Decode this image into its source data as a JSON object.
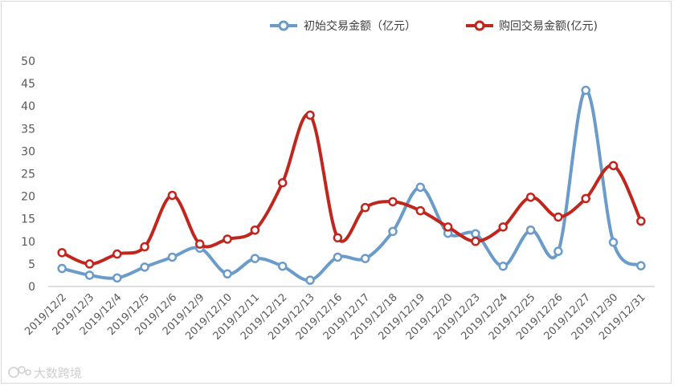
{
  "chart_data": {
    "type": "line",
    "categories": [
      "2019/12/2",
      "2019/12/3",
      "2019/12/4",
      "2019/12/5",
      "2019/12/6",
      "2019/12/9",
      "2019/12/10",
      "2019/12/11",
      "2019/12/12",
      "2019/12/13",
      "2019/12/16",
      "2019/12/17",
      "2019/12/18",
      "2019/12/19",
      "2019/12/20",
      "2019/12/23",
      "2019/12/24",
      "2019/12/25",
      "2019/12/26",
      "2019/12/27",
      "2019/12/30",
      "2019/12/31"
    ],
    "series": [
      {
        "name": "初始交易金额（亿元）",
        "color": "#6b9bc9",
        "values": [
          4,
          2.5,
          1.9,
          4.3,
          6.5,
          8.5,
          2.8,
          6.2,
          4.5,
          1.4,
          6.5,
          6.2,
          12.2,
          22,
          11.8,
          11.7,
          4.5,
          12.5,
          7.8,
          43.5,
          9.8,
          4.6
        ]
      },
      {
        "name": "购回交易金额(亿元)",
        "color": "#c0261d",
        "values": [
          7.5,
          5,
          7.2,
          8.8,
          20.2,
          9.4,
          10.5,
          12.5,
          23,
          38,
          10.8,
          17.5,
          18.8,
          16.8,
          13.2,
          10,
          13.2,
          19.8,
          15.4,
          19.5,
          26.8,
          14.5
        ]
      }
    ],
    "yaxis": {
      "min": 0,
      "max": 50,
      "ticks": [
        "0",
        "5",
        "10",
        "15",
        "20",
        "25",
        "30",
        "35",
        "40",
        "45",
        "50"
      ]
    },
    "grid": false,
    "legend_position": "top"
  },
  "watermark": {
    "text": "大数跨境",
    "logo_icon": "brand-logo-icon"
  }
}
